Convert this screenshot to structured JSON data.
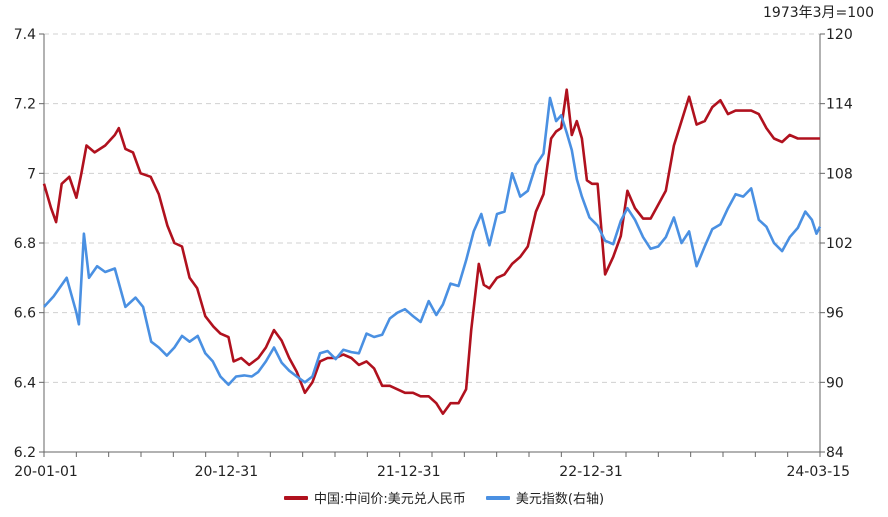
{
  "chart_data": {
    "type": "line",
    "unit_label": "1973年3月=100",
    "x_ticks": [
      "20-01-01",
      "20-12-31",
      "21-12-31",
      "22-12-31",
      "24-03-15"
    ],
    "x_range": [
      "2020-01-01",
      "2024-03-15"
    ],
    "left_axis": {
      "ylim": [
        6.2,
        7.4
      ],
      "ticks": [
        "6.2",
        "6.4",
        "6.6",
        "6.8",
        "7",
        "7.2",
        "7.4"
      ]
    },
    "right_axis": {
      "ylim": [
        84,
        120
      ],
      "ticks": [
        "84",
        "90",
        "96",
        "102",
        "108",
        "114",
        "120"
      ]
    },
    "grid": true,
    "legend_position": "bottom",
    "series": [
      {
        "name": "中国:中间价:美元兑人民币",
        "axis": "left",
        "color": "#b0111e",
        "points": [
          [
            "2020-01-01",
            6.97
          ],
          [
            "2020-01-15",
            6.9
          ],
          [
            "2020-01-25",
            6.86
          ],
          [
            "2020-02-05",
            6.97
          ],
          [
            "2020-02-20",
            6.99
          ],
          [
            "2020-03-05",
            6.93
          ],
          [
            "2020-03-15",
            7.0
          ],
          [
            "2020-03-25",
            7.08
          ],
          [
            "2020-04-10",
            7.06
          ],
          [
            "2020-05-01",
            7.08
          ],
          [
            "2020-05-20",
            7.11
          ],
          [
            "2020-05-28",
            7.13
          ],
          [
            "2020-06-10",
            7.07
          ],
          [
            "2020-06-25",
            7.06
          ],
          [
            "2020-07-10",
            7.0
          ],
          [
            "2020-07-30",
            6.99
          ],
          [
            "2020-08-15",
            6.94
          ],
          [
            "2020-09-01",
            6.85
          ],
          [
            "2020-09-15",
            6.8
          ],
          [
            "2020-09-30",
            6.79
          ],
          [
            "2020-10-15",
            6.7
          ],
          [
            "2020-10-30",
            6.67
          ],
          [
            "2020-11-15",
            6.59
          ],
          [
            "2020-12-01",
            6.56
          ],
          [
            "2020-12-15",
            6.54
          ],
          [
            "2020-12-31",
            6.53
          ],
          [
            "2021-01-10",
            6.46
          ],
          [
            "2021-01-25",
            6.47
          ],
          [
            "2021-02-10",
            6.45
          ],
          [
            "2021-02-28",
            6.47
          ],
          [
            "2021-03-15",
            6.5
          ],
          [
            "2021-03-31",
            6.55
          ],
          [
            "2021-04-15",
            6.52
          ],
          [
            "2021-04-30",
            6.47
          ],
          [
            "2021-05-15",
            6.43
          ],
          [
            "2021-05-31",
            6.37
          ],
          [
            "2021-06-15",
            6.4
          ],
          [
            "2021-06-30",
            6.46
          ],
          [
            "2021-07-15",
            6.47
          ],
          [
            "2021-07-31",
            6.47
          ],
          [
            "2021-08-15",
            6.48
          ],
          [
            "2021-08-31",
            6.47
          ],
          [
            "2021-09-15",
            6.45
          ],
          [
            "2021-09-30",
            6.46
          ],
          [
            "2021-10-15",
            6.44
          ],
          [
            "2021-10-31",
            6.39
          ],
          [
            "2021-11-15",
            6.39
          ],
          [
            "2021-11-30",
            6.38
          ],
          [
            "2021-12-15",
            6.37
          ],
          [
            "2021-12-31",
            6.37
          ],
          [
            "2022-01-15",
            6.36
          ],
          [
            "2022-01-31",
            6.36
          ],
          [
            "2022-02-15",
            6.34
          ],
          [
            "2022-02-28",
            6.31
          ],
          [
            "2022-03-15",
            6.34
          ],
          [
            "2022-03-31",
            6.34
          ],
          [
            "2022-04-15",
            6.38
          ],
          [
            "2022-04-25",
            6.55
          ],
          [
            "2022-05-10",
            6.74
          ],
          [
            "2022-05-20",
            6.68
          ],
          [
            "2022-05-31",
            6.67
          ],
          [
            "2022-06-15",
            6.7
          ],
          [
            "2022-06-30",
            6.71
          ],
          [
            "2022-07-15",
            6.74
          ],
          [
            "2022-07-31",
            6.76
          ],
          [
            "2022-08-15",
            6.79
          ],
          [
            "2022-08-31",
            6.89
          ],
          [
            "2022-09-15",
            6.94
          ],
          [
            "2022-09-30",
            7.1
          ],
          [
            "2022-10-10",
            7.12
          ],
          [
            "2022-10-20",
            7.13
          ],
          [
            "2022-10-31",
            7.24
          ],
          [
            "2022-11-10",
            7.11
          ],
          [
            "2022-11-20",
            7.15
          ],
          [
            "2022-11-30",
            7.1
          ],
          [
            "2022-12-10",
            6.98
          ],
          [
            "2022-12-20",
            6.97
          ],
          [
            "2022-12-31",
            6.97
          ],
          [
            "2023-01-15",
            6.71
          ],
          [
            "2023-01-31",
            6.76
          ],
          [
            "2023-02-15",
            6.82
          ],
          [
            "2023-02-28",
            6.95
          ],
          [
            "2023-03-15",
            6.9
          ],
          [
            "2023-03-31",
            6.87
          ],
          [
            "2023-04-15",
            6.87
          ],
          [
            "2023-04-30",
            6.91
          ],
          [
            "2023-05-15",
            6.95
          ],
          [
            "2023-05-31",
            7.08
          ],
          [
            "2023-06-15",
            7.15
          ],
          [
            "2023-06-30",
            7.22
          ],
          [
            "2023-07-15",
            7.14
          ],
          [
            "2023-07-31",
            7.15
          ],
          [
            "2023-08-15",
            7.19
          ],
          [
            "2023-08-31",
            7.21
          ],
          [
            "2023-09-15",
            7.17
          ],
          [
            "2023-09-30",
            7.18
          ],
          [
            "2023-10-31",
            7.18
          ],
          [
            "2023-11-15",
            7.17
          ],
          [
            "2023-11-30",
            7.13
          ],
          [
            "2023-12-15",
            7.1
          ],
          [
            "2023-12-31",
            7.09
          ],
          [
            "2024-01-15",
            7.11
          ],
          [
            "2024-01-31",
            7.1
          ],
          [
            "2024-02-15",
            7.1
          ],
          [
            "2024-03-15",
            7.1
          ]
        ]
      },
      {
        "name": "美元指数(右轴)",
        "axis": "right",
        "color": "#4a90e2",
        "points": [
          [
            "2020-01-01",
            96.5
          ],
          [
            "2020-01-20",
            97.4
          ],
          [
            "2020-02-15",
            99.0
          ],
          [
            "2020-03-05",
            96.0
          ],
          [
            "2020-03-10",
            95.0
          ],
          [
            "2020-03-20",
            102.8
          ],
          [
            "2020-03-30",
            99.0
          ],
          [
            "2020-04-15",
            100.0
          ],
          [
            "2020-05-01",
            99.5
          ],
          [
            "2020-05-20",
            99.8
          ],
          [
            "2020-06-10",
            96.5
          ],
          [
            "2020-06-30",
            97.3
          ],
          [
            "2020-07-15",
            96.5
          ],
          [
            "2020-07-31",
            93.5
          ],
          [
            "2020-08-15",
            93.0
          ],
          [
            "2020-08-31",
            92.3
          ],
          [
            "2020-09-15",
            93.0
          ],
          [
            "2020-09-30",
            94.0
          ],
          [
            "2020-10-15",
            93.5
          ],
          [
            "2020-10-31",
            94.0
          ],
          [
            "2020-11-15",
            92.5
          ],
          [
            "2020-11-30",
            91.8
          ],
          [
            "2020-12-15",
            90.5
          ],
          [
            "2020-12-31",
            89.8
          ],
          [
            "2021-01-15",
            90.5
          ],
          [
            "2021-01-31",
            90.6
          ],
          [
            "2021-02-15",
            90.5
          ],
          [
            "2021-02-28",
            90.9
          ],
          [
            "2021-03-15",
            91.8
          ],
          [
            "2021-03-31",
            93.0
          ],
          [
            "2021-04-15",
            91.7
          ],
          [
            "2021-04-30",
            91.0
          ],
          [
            "2021-05-15",
            90.5
          ],
          [
            "2021-05-31",
            90.0
          ],
          [
            "2021-06-15",
            90.5
          ],
          [
            "2021-06-30",
            92.5
          ],
          [
            "2021-07-15",
            92.7
          ],
          [
            "2021-07-31",
            92.0
          ],
          [
            "2021-08-15",
            92.8
          ],
          [
            "2021-08-31",
            92.6
          ],
          [
            "2021-09-15",
            92.5
          ],
          [
            "2021-09-30",
            94.2
          ],
          [
            "2021-10-15",
            93.9
          ],
          [
            "2021-10-31",
            94.1
          ],
          [
            "2021-11-15",
            95.5
          ],
          [
            "2021-11-30",
            96.0
          ],
          [
            "2021-12-15",
            96.3
          ],
          [
            "2021-12-31",
            95.7
          ],
          [
            "2022-01-15",
            95.2
          ],
          [
            "2022-01-31",
            97.0
          ],
          [
            "2022-02-15",
            95.8
          ],
          [
            "2022-02-28",
            96.7
          ],
          [
            "2022-03-15",
            98.5
          ],
          [
            "2022-03-31",
            98.3
          ],
          [
            "2022-04-15",
            100.5
          ],
          [
            "2022-04-30",
            103.0
          ],
          [
            "2022-05-15",
            104.5
          ],
          [
            "2022-05-31",
            101.8
          ],
          [
            "2022-06-15",
            104.5
          ],
          [
            "2022-06-30",
            104.7
          ],
          [
            "2022-07-15",
            108.0
          ],
          [
            "2022-07-31",
            106.0
          ],
          [
            "2022-08-15",
            106.5
          ],
          [
            "2022-08-31",
            108.7
          ],
          [
            "2022-09-15",
            109.7
          ],
          [
            "2022-09-28",
            114.5
          ],
          [
            "2022-10-10",
            112.5
          ],
          [
            "2022-10-20",
            113.0
          ],
          [
            "2022-10-31",
            111.5
          ],
          [
            "2022-11-10",
            110.0
          ],
          [
            "2022-11-20",
            107.5
          ],
          [
            "2022-11-30",
            106.0
          ],
          [
            "2022-12-15",
            104.2
          ],
          [
            "2022-12-31",
            103.5
          ],
          [
            "2023-01-15",
            102.2
          ],
          [
            "2023-01-31",
            101.9
          ],
          [
            "2023-02-15",
            103.9
          ],
          [
            "2023-02-28",
            105.0
          ],
          [
            "2023-03-15",
            104.0
          ],
          [
            "2023-03-31",
            102.5
          ],
          [
            "2023-04-15",
            101.5
          ],
          [
            "2023-04-30",
            101.7
          ],
          [
            "2023-05-15",
            102.5
          ],
          [
            "2023-05-31",
            104.2
          ],
          [
            "2023-06-15",
            102.0
          ],
          [
            "2023-06-30",
            103.0
          ],
          [
            "2023-07-15",
            100.0
          ],
          [
            "2023-07-31",
            101.7
          ],
          [
            "2023-08-15",
            103.2
          ],
          [
            "2023-08-31",
            103.6
          ],
          [
            "2023-09-15",
            105.0
          ],
          [
            "2023-09-30",
            106.2
          ],
          [
            "2023-10-15",
            106.0
          ],
          [
            "2023-10-31",
            106.7
          ],
          [
            "2023-11-15",
            104.0
          ],
          [
            "2023-11-30",
            103.4
          ],
          [
            "2023-12-15",
            102.0
          ],
          [
            "2023-12-31",
            101.3
          ],
          [
            "2024-01-15",
            102.5
          ],
          [
            "2024-01-31",
            103.3
          ],
          [
            "2024-02-15",
            104.7
          ],
          [
            "2024-02-28",
            104.0
          ],
          [
            "2024-03-08",
            102.8
          ],
          [
            "2024-03-15",
            103.4
          ]
        ]
      }
    ]
  }
}
